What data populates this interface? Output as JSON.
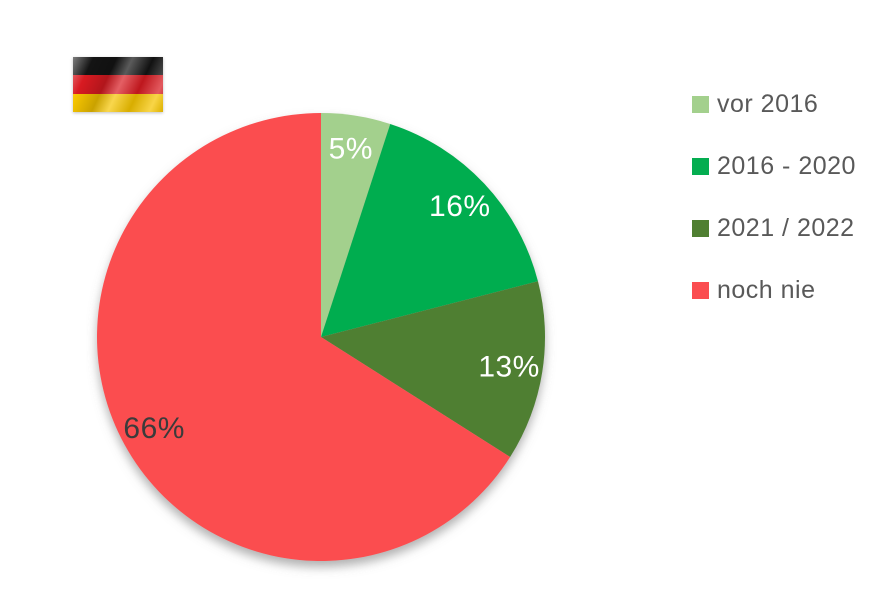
{
  "page": {
    "background": "#FFFFFF"
  },
  "flag": {
    "country": "germany",
    "stripe_colors": [
      "#141414",
      "#D81A21",
      "#F6C500"
    ]
  },
  "chart_data": {
    "type": "pie",
    "categories": [
      "vor 2016",
      "2016 - 2020",
      "2021 / 2022",
      "noch nie"
    ],
    "values": [
      5,
      16,
      13,
      66
    ],
    "unit": "%",
    "slice_labels": [
      "5%",
      "16%",
      "13%",
      "66%"
    ],
    "slice_colors": [
      "#A3D08D",
      "#04AD50",
      "#4F7F31",
      "#FB4D50"
    ],
    "slice_label_colors": [
      "#FFFFFF",
      "#FFFFFF",
      "#FFFFFF",
      "#3B3B3B"
    ],
    "start_angle_deg": 0,
    "direction": "clockwise",
    "legend_position": "right",
    "legend_text_color": "#595959",
    "title": "",
    "grid": false
  }
}
